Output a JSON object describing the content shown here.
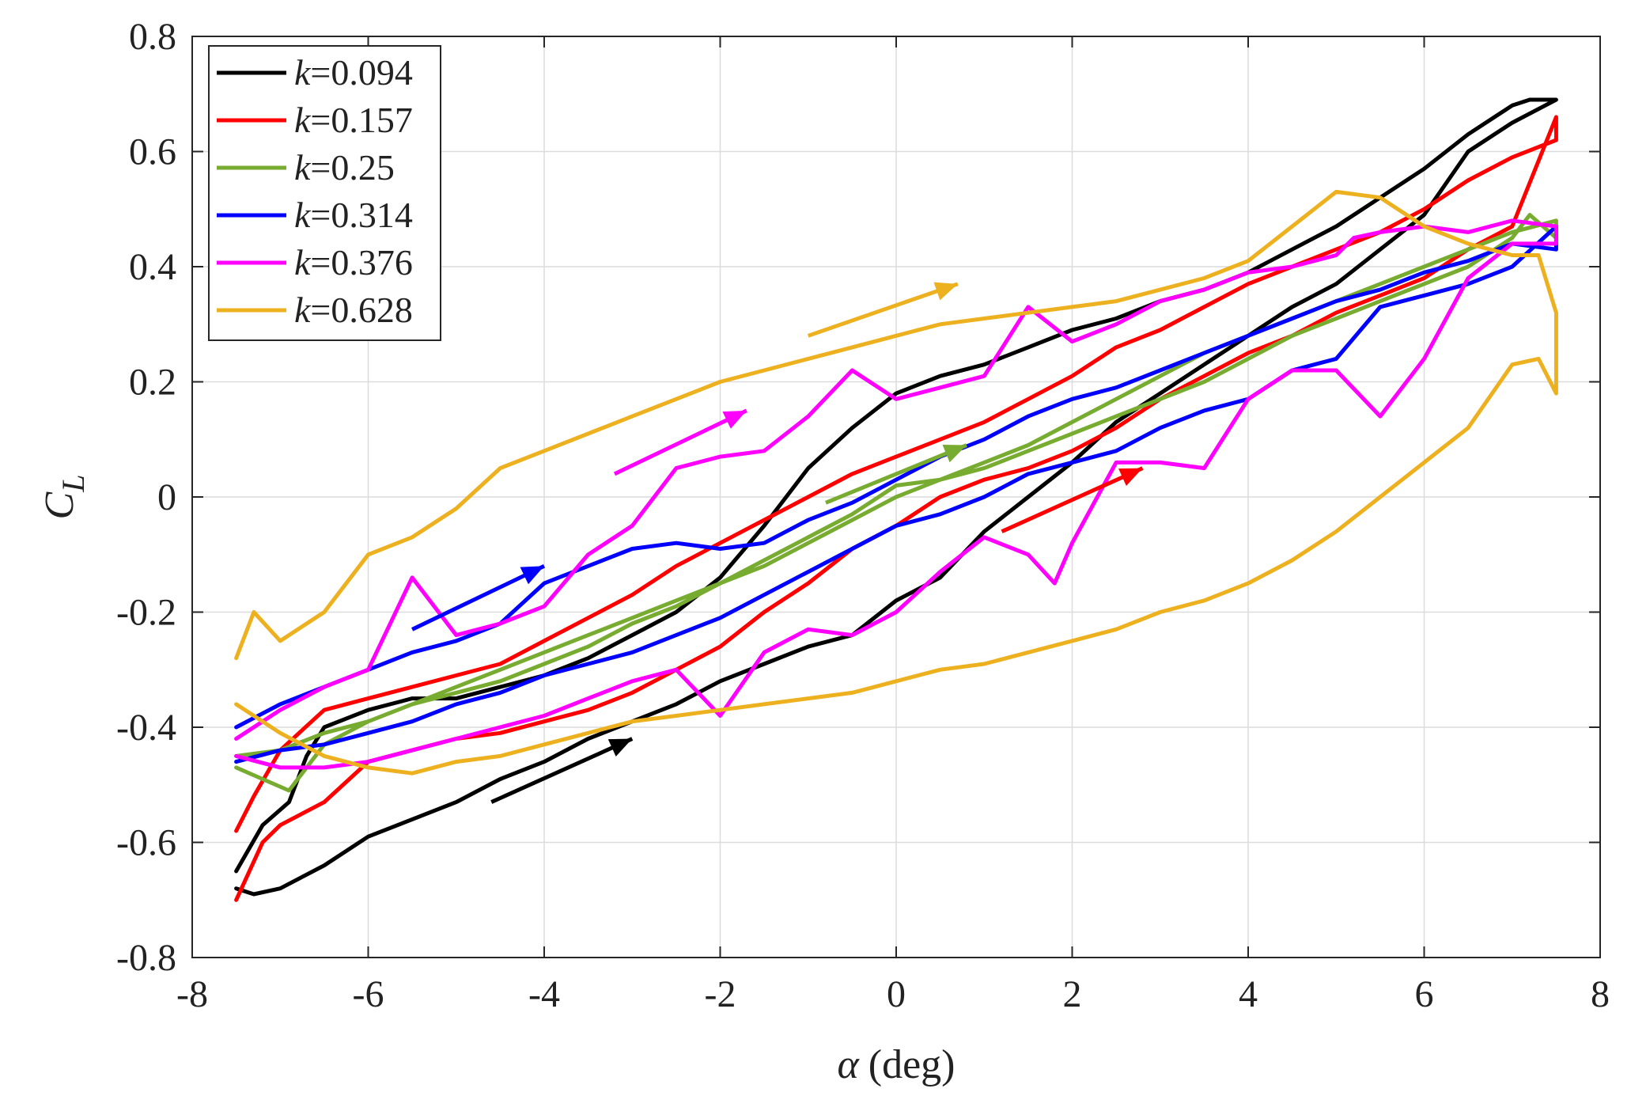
{
  "chart_data": {
    "type": "line",
    "title": "",
    "xlabel_symbol": "α",
    "xlabel_unit": "(deg)",
    "ylabel_symbol": "C",
    "ylabel_subscript": "L",
    "xlim": [
      -8,
      8
    ],
    "ylim": [
      -0.8,
      0.8
    ],
    "xticks": [
      -8,
      -6,
      -4,
      -2,
      0,
      2,
      4,
      6,
      8
    ],
    "xtick_labels": [
      "-8",
      "-6",
      "-4",
      "-2",
      "0",
      "2",
      "4",
      "6",
      "8"
    ],
    "yticks": [
      -0.8,
      -0.6,
      -0.4,
      -0.2,
      0,
      0.2,
      0.4,
      0.6,
      0.8
    ],
    "ytick_labels": [
      "-0.8",
      "-0.6",
      "-0.4",
      "-0.2",
      "0",
      "0.2",
      "0.4",
      "0.6",
      "0.8"
    ],
    "grid": true,
    "legend_position": "top-left",
    "series": [
      {
        "name": "k=0.094",
        "legend_var": "k",
        "legend_value": "=0.094",
        "color": "#000000",
        "x": [
          -7.5,
          -7.3,
          -7.0,
          -6.5,
          -6.0,
          -5.5,
          -5.0,
          -4.5,
          -4.0,
          -3.5,
          -3.0,
          -2.5,
          -2.0,
          -1.5,
          -1.0,
          -0.5,
          0.0,
          0.5,
          1.0,
          1.5,
          2.0,
          2.5,
          3.0,
          3.5,
          4.0,
          4.5,
          5.0,
          5.5,
          6.0,
          6.5,
          7.0,
          7.5,
          7.5,
          7.2,
          7.0,
          6.8,
          6.5,
          6.0,
          5.5,
          5.0,
          4.5,
          4.0,
          3.5,
          3.0,
          2.5,
          2.0,
          1.5,
          1.0,
          0.5,
          0.0,
          -0.5,
          -1.0,
          -1.5,
          -2.0,
          -2.5,
          -3.0,
          -3.5,
          -4.0,
          -4.5,
          -5.0,
          -5.5,
          -6.0,
          -6.5,
          -6.7,
          -6.9,
          -7.2,
          -7.5
        ],
        "y": [
          -0.68,
          -0.69,
          -0.68,
          -0.64,
          -0.59,
          -0.56,
          -0.53,
          -0.49,
          -0.46,
          -0.42,
          -0.39,
          -0.36,
          -0.32,
          -0.29,
          -0.26,
          -0.24,
          -0.18,
          -0.14,
          -0.06,
          0.0,
          0.06,
          0.13,
          0.18,
          0.23,
          0.28,
          0.33,
          0.37,
          0.43,
          0.49,
          0.6,
          0.65,
          0.69,
          0.69,
          0.69,
          0.68,
          0.66,
          0.63,
          0.57,
          0.52,
          0.47,
          0.43,
          0.39,
          0.36,
          0.34,
          0.31,
          0.29,
          0.26,
          0.23,
          0.21,
          0.18,
          0.12,
          0.05,
          -0.05,
          -0.14,
          -0.2,
          -0.24,
          -0.28,
          -0.31,
          -0.33,
          -0.35,
          -0.35,
          -0.37,
          -0.4,
          -0.45,
          -0.53,
          -0.57,
          -0.65
        ]
      },
      {
        "name": "k=0.157",
        "legend_var": "k",
        "legend_value": "=0.157",
        "color": "#ff0000",
        "x": [
          -7.5,
          -7.2,
          -7.0,
          -6.5,
          -6.0,
          -5.5,
          -5.0,
          -4.5,
          -4.0,
          -3.5,
          -3.0,
          -2.5,
          -2.0,
          -1.5,
          -1.0,
          -0.5,
          0.0,
          0.5,
          1.0,
          1.5,
          2.0,
          2.5,
          3.0,
          3.5,
          4.0,
          4.5,
          5.0,
          5.5,
          6.0,
          6.5,
          7.0,
          7.5,
          7.5,
          7.0,
          6.5,
          6.0,
          5.5,
          5.0,
          4.5,
          4.0,
          3.5,
          3.0,
          2.5,
          2.0,
          1.5,
          1.0,
          0.5,
          0.0,
          -0.5,
          -1.0,
          -1.5,
          -2.0,
          -2.5,
          -3.0,
          -3.5,
          -4.0,
          -4.5,
          -5.0,
          -5.5,
          -6.0,
          -6.5,
          -7.0,
          -7.3,
          -7.5
        ],
        "y": [
          -0.7,
          -0.6,
          -0.57,
          -0.53,
          -0.46,
          -0.44,
          -0.42,
          -0.41,
          -0.39,
          -0.37,
          -0.34,
          -0.3,
          -0.26,
          -0.2,
          -0.15,
          -0.09,
          -0.05,
          0.0,
          0.03,
          0.05,
          0.08,
          0.12,
          0.17,
          0.21,
          0.25,
          0.28,
          0.32,
          0.35,
          0.38,
          0.43,
          0.47,
          0.66,
          0.62,
          0.59,
          0.55,
          0.5,
          0.46,
          0.43,
          0.4,
          0.37,
          0.33,
          0.29,
          0.26,
          0.21,
          0.17,
          0.13,
          0.1,
          0.07,
          0.04,
          0.0,
          -0.04,
          -0.08,
          -0.12,
          -0.17,
          -0.21,
          -0.25,
          -0.29,
          -0.31,
          -0.33,
          -0.35,
          -0.37,
          -0.44,
          -0.52,
          -0.58
        ]
      },
      {
        "name": "k=0.25",
        "legend_var": "k",
        "legend_value": "=0.25",
        "color": "#77ac30",
        "x": [
          -7.5,
          -7.2,
          -6.9,
          -6.5,
          -6.0,
          -5.5,
          -5.0,
          -4.5,
          -4.0,
          -3.5,
          -3.0,
          -2.5,
          -2.0,
          -1.5,
          -1.0,
          -0.5,
          0.0,
          0.5,
          1.0,
          1.5,
          2.0,
          2.5,
          3.0,
          3.5,
          4.0,
          4.5,
          5.0,
          5.5,
          6.0,
          6.5,
          7.0,
          7.5,
          7.5,
          7.2,
          7.0,
          6.5,
          6.0,
          5.5,
          5.0,
          4.5,
          4.0,
          3.5,
          3.0,
          2.5,
          2.0,
          1.5,
          1.0,
          0.5,
          0.0,
          -0.5,
          -1.0,
          -1.5,
          -2.0,
          -2.5,
          -3.0,
          -3.5,
          -4.0,
          -4.5,
          -5.0,
          -5.5,
          -6.0,
          -6.5,
          -7.0,
          -7.5
        ],
        "y": [
          -0.47,
          -0.49,
          -0.51,
          -0.43,
          -0.39,
          -0.36,
          -0.33,
          -0.3,
          -0.27,
          -0.24,
          -0.21,
          -0.18,
          -0.15,
          -0.12,
          -0.08,
          -0.04,
          0.0,
          0.03,
          0.06,
          0.09,
          0.13,
          0.17,
          0.21,
          0.25,
          0.28,
          0.31,
          0.34,
          0.37,
          0.4,
          0.43,
          0.46,
          0.48,
          0.45,
          0.49,
          0.45,
          0.4,
          0.37,
          0.34,
          0.31,
          0.28,
          0.24,
          0.2,
          0.17,
          0.14,
          0.11,
          0.08,
          0.05,
          0.03,
          0.02,
          -0.03,
          -0.07,
          -0.11,
          -0.15,
          -0.19,
          -0.22,
          -0.26,
          -0.29,
          -0.32,
          -0.34,
          -0.36,
          -0.39,
          -0.41,
          -0.44,
          -0.45
        ]
      },
      {
        "name": "k=0.314",
        "legend_var": "k",
        "legend_value": "=0.314",
        "color": "#0000ff",
        "x": [
          -7.5,
          -7.0,
          -6.5,
          -6.0,
          -5.5,
          -5.0,
          -4.5,
          -4.0,
          -3.5,
          -3.0,
          -2.5,
          -2.0,
          -1.5,
          -1.0,
          -0.5,
          0.0,
          0.5,
          1.0,
          1.5,
          2.0,
          2.5,
          3.0,
          3.5,
          4.0,
          4.5,
          5.0,
          5.5,
          6.0,
          6.5,
          7.0,
          7.5,
          7.5,
          7.0,
          6.5,
          6.0,
          5.5,
          5.0,
          4.5,
          4.0,
          3.5,
          3.0,
          2.5,
          2.0,
          1.5,
          1.0,
          0.5,
          0.0,
          -0.5,
          -1.0,
          -1.5,
          -2.0,
          -2.5,
          -3.0,
          -3.5,
          -4.0,
          -4.5,
          -5.0,
          -5.5,
          -6.0,
          -6.5,
          -7.0,
          -7.5
        ],
        "y": [
          -0.46,
          -0.44,
          -0.43,
          -0.41,
          -0.39,
          -0.36,
          -0.34,
          -0.31,
          -0.29,
          -0.27,
          -0.24,
          -0.21,
          -0.17,
          -0.13,
          -0.09,
          -0.05,
          -0.03,
          0.0,
          0.04,
          0.06,
          0.08,
          0.12,
          0.15,
          0.17,
          0.22,
          0.24,
          0.33,
          0.35,
          0.37,
          0.4,
          0.47,
          0.43,
          0.44,
          0.41,
          0.39,
          0.36,
          0.34,
          0.31,
          0.28,
          0.25,
          0.22,
          0.19,
          0.17,
          0.14,
          0.1,
          0.07,
          0.03,
          -0.01,
          -0.04,
          -0.08,
          -0.09,
          -0.08,
          -0.09,
          -0.12,
          -0.15,
          -0.22,
          -0.25,
          -0.27,
          -0.3,
          -0.33,
          -0.36,
          -0.4
        ]
      },
      {
        "name": "k=0.376",
        "legend_var": "k",
        "legend_value": "=0.376",
        "color": "#ff00ff",
        "x": [
          -7.5,
          -7.0,
          -6.5,
          -6.0,
          -5.5,
          -5.0,
          -4.5,
          -4.0,
          -3.5,
          -3.0,
          -2.5,
          -2.0,
          -1.5,
          -1.0,
          -0.5,
          0.0,
          0.5,
          1.0,
          1.5,
          1.8,
          2.0,
          2.5,
          3.0,
          3.5,
          4.0,
          4.5,
          5.0,
          5.5,
          6.0,
          6.5,
          7.0,
          7.5,
          7.5,
          7.0,
          6.5,
          6.0,
          5.5,
          5.2,
          5.0,
          4.5,
          4.0,
          3.5,
          3.0,
          2.5,
          2.0,
          1.5,
          1.0,
          0.5,
          0.0,
          -0.5,
          -1.0,
          -1.5,
          -2.0,
          -2.5,
          -3.0,
          -3.5,
          -4.0,
          -4.5,
          -5.0,
          -5.5,
          -6.0,
          -6.5,
          -7.0,
          -7.5
        ],
        "y": [
          -0.45,
          -0.47,
          -0.47,
          -0.46,
          -0.44,
          -0.42,
          -0.4,
          -0.38,
          -0.35,
          -0.32,
          -0.3,
          -0.38,
          -0.27,
          -0.23,
          -0.24,
          -0.2,
          -0.13,
          -0.07,
          -0.1,
          -0.15,
          -0.08,
          0.06,
          0.06,
          0.05,
          0.17,
          0.22,
          0.22,
          0.14,
          0.24,
          0.38,
          0.44,
          0.44,
          0.47,
          0.48,
          0.46,
          0.47,
          0.46,
          0.45,
          0.42,
          0.4,
          0.39,
          0.36,
          0.34,
          0.3,
          0.27,
          0.33,
          0.21,
          0.19,
          0.17,
          0.22,
          0.14,
          0.08,
          0.07,
          0.05,
          -0.05,
          -0.1,
          -0.19,
          -0.22,
          -0.24,
          -0.14,
          -0.3,
          -0.33,
          -0.37,
          -0.42
        ]
      },
      {
        "name": "k=0.628",
        "legend_var": "k",
        "legend_value": "=0.628",
        "color": "#edb120",
        "x": [
          -7.5,
          -7.3,
          -7.0,
          -6.5,
          -6.0,
          -5.5,
          -5.0,
          -4.5,
          -4.0,
          -3.5,
          -3.0,
          -2.5,
          -2.0,
          -1.5,
          -1.0,
          -0.5,
          0.0,
          0.5,
          1.0,
          1.5,
          2.0,
          2.5,
          3.0,
          3.5,
          4.0,
          4.5,
          5.0,
          5.5,
          6.0,
          6.5,
          7.0,
          7.3,
          7.5,
          7.5,
          7.3,
          7.0,
          6.5,
          6.0,
          5.5,
          5.0,
          4.5,
          4.0,
          3.5,
          3.0,
          2.5,
          2.0,
          1.5,
          1.0,
          0.5,
          0.0,
          -0.5,
          -1.0,
          -1.5,
          -2.0,
          -2.5,
          -3.0,
          -3.5,
          -4.0,
          -4.5,
          -5.0,
          -5.5,
          -6.0,
          -6.5,
          -7.0,
          -7.3,
          -7.5
        ],
        "y": [
          -0.28,
          -0.2,
          -0.25,
          -0.2,
          -0.1,
          -0.07,
          -0.02,
          0.05,
          0.08,
          0.11,
          0.14,
          0.17,
          0.2,
          0.22,
          0.24,
          0.26,
          0.28,
          0.3,
          0.31,
          0.32,
          0.33,
          0.34,
          0.36,
          0.38,
          0.41,
          0.47,
          0.53,
          0.52,
          0.47,
          0.44,
          0.42,
          0.42,
          0.32,
          0.18,
          0.24,
          0.23,
          0.12,
          0.06,
          0.0,
          -0.06,
          -0.11,
          -0.15,
          -0.18,
          -0.2,
          -0.23,
          -0.25,
          -0.27,
          -0.29,
          -0.3,
          -0.32,
          -0.34,
          -0.35,
          -0.36,
          -0.37,
          -0.38,
          -0.39,
          -0.41,
          -0.43,
          -0.45,
          -0.46,
          -0.48,
          -0.47,
          -0.45,
          -0.41,
          -0.38,
          -0.36
        ]
      }
    ],
    "arrows": [
      {
        "color": "#edb120",
        "from": [
          -1.0,
          0.28
        ],
        "to": [
          0.7,
          0.37
        ]
      },
      {
        "color": "#ff00ff",
        "from": [
          -3.2,
          0.04
        ],
        "to": [
          -1.7,
          0.15
        ]
      },
      {
        "color": "#77ac30",
        "from": [
          -0.8,
          -0.01
        ],
        "to": [
          0.8,
          0.09
        ]
      },
      {
        "color": "#ff0000",
        "from": [
          1.2,
          -0.06
        ],
        "to": [
          2.8,
          0.05
        ]
      },
      {
        "color": "#0000ff",
        "from": [
          -5.5,
          -0.23
        ],
        "to": [
          -4.0,
          -0.12
        ]
      },
      {
        "color": "#000000",
        "from": [
          -4.6,
          -0.53
        ],
        "to": [
          -3.0,
          -0.42
        ]
      }
    ]
  }
}
